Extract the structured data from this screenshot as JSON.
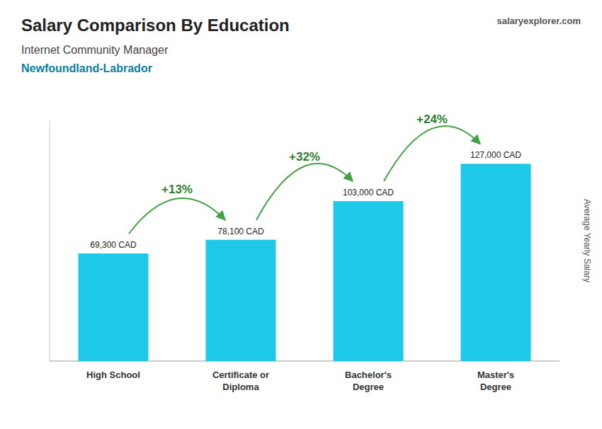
{
  "chart_data": {
    "type": "bar",
    "title": "Salary Comparison By Education",
    "subtitle": "Internet Community Manager",
    "annotations": [
      "Newfoundland-Labrador",
      "salaryexplorer.com"
    ],
    "change_labels": [
      "+13%",
      "+32%",
      "+24%"
    ],
    "ylabel": "Average Yearly Salary",
    "categories": [
      "High School",
      "Certificate or\nDiploma",
      "Bachelor's\nDegree",
      "Master's\nDegree"
    ],
    "values": [
      69300,
      78100,
      103000,
      127000
    ],
    "value_labels": [
      "69,300 CAD",
      "78,100 CAD",
      "103,000 CAD",
      "127,000 CAD"
    ],
    "data_labels": true,
    "color": "#1ec8e8",
    "ylim": [
      0,
      155000
    ],
    "yticks": [],
    "tick_labels": "x",
    "grid": false
  }
}
